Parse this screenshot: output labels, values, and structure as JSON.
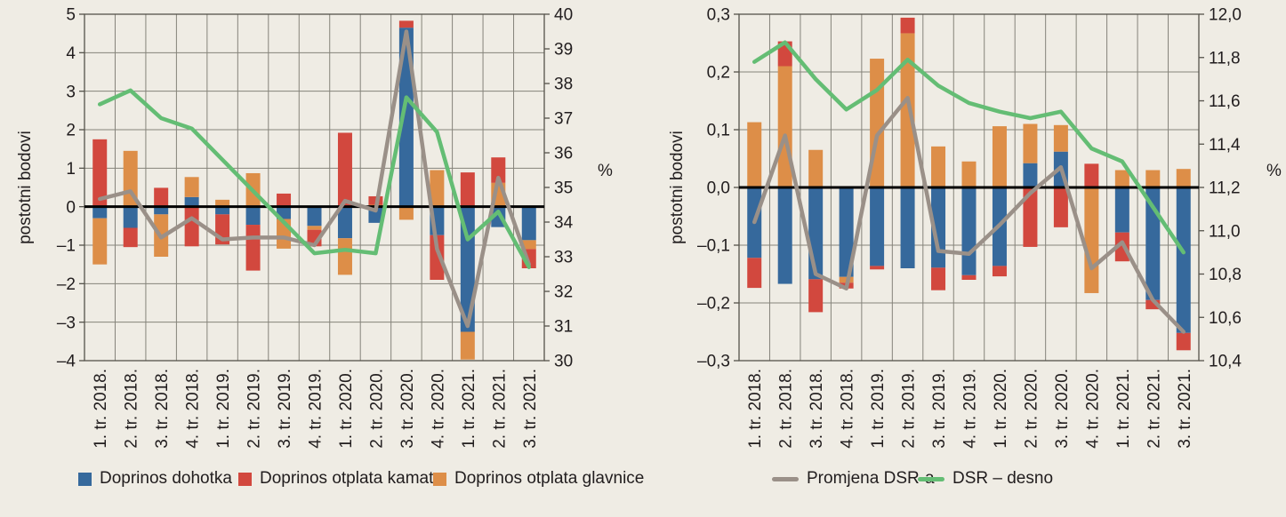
{
  "colors": {
    "dohodak": "#36699c",
    "kamata": "#d2483e",
    "glavnica": "#dd8e48",
    "promjena": "#9a9088",
    "dsr": "#64bd74",
    "grid": "#85837a",
    "frame": "#55534b",
    "zero_line": "#000000",
    "text": "#211d1e",
    "background": "#efece4"
  },
  "legend": [
    {
      "label": "Doprinos dohotka",
      "color_key": "dohodak",
      "marker": "square"
    },
    {
      "label": "Doprinos otplata kamata",
      "color_key": "kamata",
      "marker": "square"
    },
    {
      "label": "Doprinos otplata glavnice",
      "color_key": "glavnica",
      "marker": "square"
    },
    {
      "label": "Promjena DSR-a",
      "color_key": "promjena",
      "marker": "line"
    },
    {
      "label": "DSR – desno",
      "color_key": "dsr",
      "marker": "line"
    }
  ],
  "chart_data": [
    {
      "type": "bar",
      "subtype": "stacked-bar-with-lines",
      "title": "",
      "ylabel": "postotni bodovi",
      "ylabel_right": "%",
      "grid": true,
      "legend_position": "bottom",
      "axis_left": {
        "min": -4,
        "max": 5,
        "step": 1,
        "tick_labels": [
          "5",
          "4",
          "3",
          "2",
          "1",
          "0",
          "–1",
          "–2",
          "–3",
          "–4"
        ]
      },
      "axis_right": {
        "min": 30,
        "max": 40,
        "step": 1,
        "tick_labels": [
          "40",
          "39",
          "38",
          "37",
          "36",
          "35",
          "34",
          "33",
          "32",
          "31",
          "30"
        ]
      },
      "categories": [
        "1. tr. 2018.",
        "2. tr. 2018.",
        "3. tr. 2018.",
        "4. tr. 2018.",
        "1. tr. 2019.",
        "2. tr. 2019.",
        "3. tr. 2019.",
        "4. tr. 2019.",
        "1. tr. 2020.",
        "2. tr. 2020.",
        "3. tr. 2020.",
        "4. tr. 2020.",
        "1. tr. 2021.",
        "2. tr. 2021.",
        "3. tr. 2021."
      ],
      "bar_series": [
        {
          "name": "Doprinos dohotka",
          "color_key": "dohodak",
          "values": [
            -0.3,
            -0.55,
            -0.2,
            0.25,
            -0.2,
            -0.47,
            -0.32,
            -0.5,
            -0.82,
            -0.42,
            4.65,
            -0.74,
            -3.25,
            -0.53,
            -0.87
          ]
        },
        {
          "name": "Doprinos otplata glavnice",
          "color_key": "glavnica",
          "values": [
            -1.2,
            1.45,
            -1.1,
            0.52,
            0.18,
            0.87,
            -0.77,
            -0.1,
            -0.95,
            0.05,
            -0.34,
            0.95,
            -0.72,
            0.62,
            -0.23
          ]
        },
        {
          "name": "Doprinos otplata kamata",
          "color_key": "kamata",
          "values": [
            1.75,
            -0.5,
            0.49,
            -1.03,
            -0.78,
            -1.19,
            0.34,
            -0.43,
            1.92,
            0.22,
            0.18,
            -1.16,
            0.89,
            0.66,
            -0.5
          ]
        }
      ],
      "line_series": [
        {
          "name": "Promjena DSR-a",
          "color_key": "promjena",
          "axis": "left",
          "values": [
            0.2,
            0.4,
            -0.8,
            -0.3,
            -0.85,
            -0.8,
            -0.8,
            -1.0,
            0.15,
            -0.1,
            4.55,
            -1.1,
            -3.1,
            0.75,
            -1.5
          ]
        },
        {
          "name": "DSR – desno",
          "color_key": "dsr",
          "axis": "right",
          "values": [
            37.4,
            37.8,
            37.0,
            36.7,
            35.8,
            34.9,
            34.0,
            33.1,
            33.2,
            33.1,
            37.6,
            36.6,
            33.5,
            34.3,
            32.7
          ]
        }
      ]
    },
    {
      "type": "bar",
      "subtype": "stacked-bar-with-lines",
      "title": "",
      "ylabel": "postotni bodovi",
      "ylabel_right": "%",
      "grid": true,
      "legend_position": "bottom",
      "axis_left": {
        "min": -0.3,
        "max": 0.3,
        "step": 0.1,
        "tick_labels": [
          "0,3",
          "0,2",
          "0,1",
          "0,0",
          "–0,1",
          "–0,2",
          "–0,3"
        ]
      },
      "axis_right": {
        "min": 10.4,
        "max": 12.0,
        "step": 0.2,
        "tick_labels": [
          "12,0",
          "11,8",
          "11,6",
          "11,4",
          "11,2",
          "11,0",
          "10,8",
          "10,6",
          "10,4"
        ]
      },
      "categories": [
        "1. tr. 2018.",
        "2. tr. 2018.",
        "3. tr. 2018.",
        "4. tr. 2018.",
        "1. tr. 2019.",
        "2. tr. 2019.",
        "3. tr. 2019.",
        "4. tr. 2019.",
        "1. tr. 2020.",
        "2. tr. 2020.",
        "3. tr. 2020.",
        "4. tr. 2020.",
        "1. tr. 2021.",
        "2. tr. 2021.",
        "3. tr. 2021."
      ],
      "bar_series": [
        {
          "name": "Doprinos dohotka",
          "color_key": "dohodak",
          "values": [
            -0.122,
            -0.167,
            -0.159,
            -0.155,
            -0.136,
            -0.14,
            -0.139,
            -0.152,
            -0.136,
            0.042,
            0.062,
            0,
            -0.078,
            -0.195,
            -0.252
          ]
        },
        {
          "name": "Doprinos otplata glavnice",
          "color_key": "glavnica",
          "values": [
            0.113,
            0.21,
            0.065,
            -0.01,
            0.223,
            0.267,
            0.071,
            0.045,
            0.106,
            0.068,
            0.046,
            -0.183,
            0.03,
            0.03,
            0.032
          ]
        },
        {
          "name": "Doprinos otplata kamata",
          "color_key": "kamata",
          "values": [
            -0.052,
            0.043,
            -0.057,
            -0.01,
            -0.006,
            0.027,
            -0.039,
            -0.008,
            -0.018,
            -0.103,
            -0.069,
            0.041,
            -0.05,
            -0.016,
            -0.03
          ]
        }
      ],
      "line_series": [
        {
          "name": "Promjena DSR-a",
          "color_key": "promjena",
          "axis": "left",
          "values": [
            -0.06,
            0.09,
            -0.15,
            -0.175,
            0.09,
            0.155,
            -0.11,
            -0.115,
            -0.065,
            -0.01,
            0.035,
            -0.14,
            -0.095,
            -0.195,
            -0.25
          ]
        },
        {
          "name": "DSR – desno",
          "color_key": "dsr",
          "axis": "right",
          "values": [
            11.78,
            11.87,
            11.7,
            11.56,
            11.65,
            11.79,
            11.67,
            11.59,
            11.55,
            11.52,
            11.55,
            11.38,
            11.32,
            11.11,
            10.9
          ]
        }
      ]
    }
  ]
}
